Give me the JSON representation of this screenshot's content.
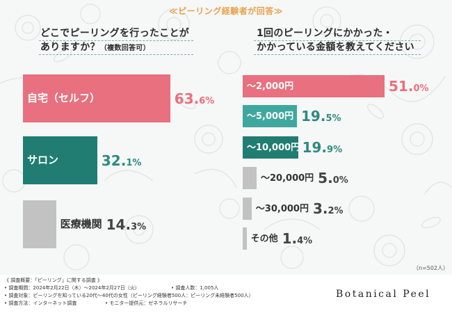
{
  "header": {
    "title": "≪ピーリング経験者が回答≫"
  },
  "chart_data": [
    {
      "type": "bar",
      "orientation": "horizontal",
      "title_line1": "どこでピーリングを行ったことが",
      "title_line2": "ありますか？",
      "title_note": "（複数回答可）",
      "categories": [
        "自宅（セルフ）",
        "サロン",
        "医療機関"
      ],
      "values": [
        63.6,
        32.1,
        14.3
      ],
      "value_labels": [
        {
          "int": "63.",
          "dec": "6%"
        },
        {
          "int": "32.",
          "dec": "1%"
        },
        {
          "int": "14.",
          "dec": "3%"
        }
      ],
      "xlim": [
        0,
        100
      ],
      "colors": [
        "#e8707f",
        "#217d72",
        "#c2c2c2"
      ]
    },
    {
      "type": "bar",
      "orientation": "horizontal",
      "title_line1": "1回のピーリングにかかった・",
      "title_line2": "かかっている金額を教えてください",
      "categories": [
        "～2,000円",
        "～5,000円",
        "～10,000円",
        "～20,000円",
        "～30,000円",
        "その他"
      ],
      "values": [
        51.0,
        19.5,
        19.9,
        5.0,
        3.2,
        1.4
      ],
      "value_labels": [
        {
          "int": "51.",
          "dec": "0%"
        },
        {
          "int": "19.",
          "dec": "5%"
        },
        {
          "int": "19.",
          "dec": "9%"
        },
        {
          "int": "5.",
          "dec": "0%"
        },
        {
          "int": "3.",
          "dec": "2%"
        },
        {
          "int": "1.",
          "dec": "4%"
        }
      ],
      "xlim": [
        0,
        100
      ],
      "colors": [
        "#e8707f",
        "#3fa89e",
        "#217d72",
        "#c2c2c2",
        "#c2c2c2",
        "#c2c2c2"
      ]
    }
  ],
  "sample_note": "（n=502人）",
  "footer": {
    "line1": "《 調査概要：「ピーリング」に関する調査 》",
    "line2": "• 調査期間：2024年2月22日（木）～2024年2月27日（火）",
    "line2b": "• 調査人数：1,005人",
    "line3": "• 調査対象：ピーリングを知っている20代～40代の女性（ピーリング経験者500人：ピーリング未経験者500人）",
    "line4": "• 調査方法：インターネット調査",
    "line4b": "• モニター提供元：ゼネラルリサーチ",
    "brand": "Botanical Peel"
  }
}
